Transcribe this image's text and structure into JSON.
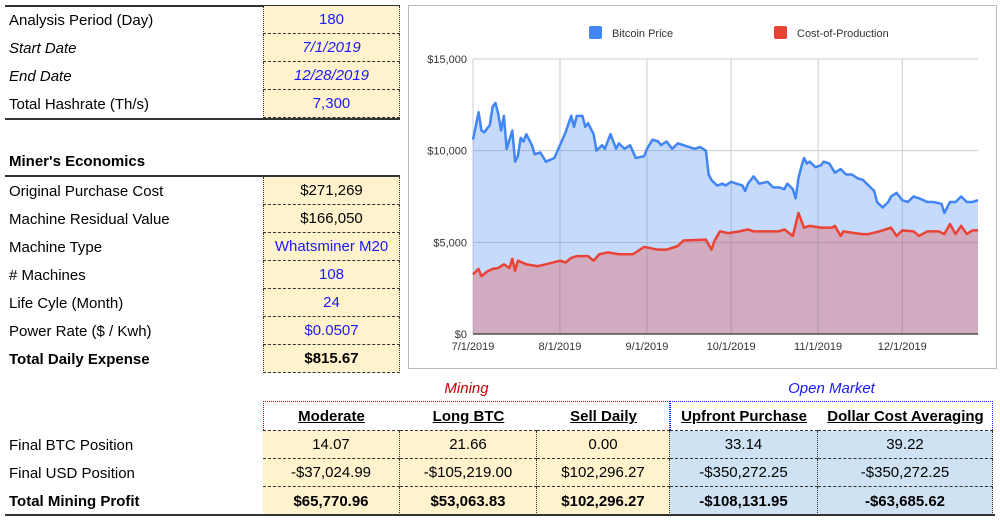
{
  "inputs": {
    "rows": [
      {
        "label": "Analysis Period (Day)",
        "value": "180"
      },
      {
        "label": "Start Date",
        "value": "7/1/2019"
      },
      {
        "label": "End Date",
        "value": "12/28/2019"
      },
      {
        "label": "Total Hashrate (Th/s)",
        "value": "7,300"
      }
    ]
  },
  "economics": {
    "title": "Miner's Economics",
    "rows": [
      {
        "label": "Original Purchase Cost",
        "value": "$271,269"
      },
      {
        "label": "Machine Residual Value",
        "value": "$166,050"
      },
      {
        "label": "Machine Type",
        "value": "Whatsminer M20"
      },
      {
        "label": "# Machines",
        "value": "108"
      },
      {
        "label": "Life Cyle (Month)",
        "value": "24"
      },
      {
        "label": "Power Rate ($ / Kwh)",
        "value": "$0.0507"
      },
      {
        "label": "Total Daily Expense",
        "value": "$815.67"
      }
    ]
  },
  "results": {
    "group_mining": "Mining",
    "group_open_market": "Open Market",
    "columns": [
      "Moderate",
      "Long BTC",
      "Sell Daily",
      "Upfront Purchase",
      "Dollar Cost Averaging"
    ],
    "rows": [
      {
        "label": "Final BTC Position",
        "values": [
          "14.07",
          "21.66",
          "0.00",
          "33.14",
          "39.22"
        ]
      },
      {
        "label": "Final USD Position",
        "values": [
          "-$37,024.99",
          "-$105,219.00",
          "$102,296.27",
          "-$350,272.25",
          "-$350,272.25"
        ]
      },
      {
        "label": "Total Mining Profit",
        "values": [
          "$65,770.96",
          "$53,063.83",
          "$102,296.27",
          "-$108,131.95",
          "-$63,685.62"
        ]
      }
    ]
  },
  "colors": {
    "mining": "#c00000",
    "open_market": "#1a1aff",
    "price": "#4285f4",
    "cost": "#ea4335",
    "cell_yellow": "#fff2cc",
    "cell_blue": "#cfe2f3"
  },
  "chart_data": {
    "type": "area",
    "x_unit": "days since 7/1/2019",
    "xlim": [
      0,
      180
    ],
    "ylim": [
      0,
      15000
    ],
    "yticks": [
      0,
      5000,
      10000,
      15000
    ],
    "ytick_labels": [
      "$0",
      "$5,000",
      "$10,000",
      "$15,000"
    ],
    "xticks": [
      0,
      31,
      62,
      92,
      123,
      153
    ],
    "xtick_labels": [
      "7/1/2019",
      "8/1/2019",
      "9/1/2019",
      "10/1/2019",
      "11/1/2019",
      "12/1/2019"
    ],
    "grid": true,
    "legend_position": "top",
    "series": [
      {
        "name": "Bitcoin Price",
        "color": "#4285f4",
        "points": [
          [
            0,
            10600
          ],
          [
            2,
            12100
          ],
          [
            3,
            11100
          ],
          [
            4,
            11000
          ],
          [
            6,
            11400
          ],
          [
            7,
            12400
          ],
          [
            8,
            12600
          ],
          [
            9,
            12000
          ],
          [
            10,
            11100
          ],
          [
            11,
            11900
          ],
          [
            12,
            10100
          ],
          [
            14,
            11100
          ],
          [
            15,
            9400
          ],
          [
            16,
            9700
          ],
          [
            17,
            10700
          ],
          [
            18,
            10500
          ],
          [
            19,
            10900
          ],
          [
            21,
            10300
          ],
          [
            22,
            9800
          ],
          [
            24,
            9900
          ],
          [
            26,
            9400
          ],
          [
            29,
            9600
          ],
          [
            31,
            10300
          ],
          [
            33,
            11000
          ],
          [
            35,
            11900
          ],
          [
            36,
            11300
          ],
          [
            37,
            11900
          ],
          [
            39,
            11900
          ],
          [
            40,
            11300
          ],
          [
            41,
            11500
          ],
          [
            43,
            10900
          ],
          [
            44,
            10000
          ],
          [
            46,
            10300
          ],
          [
            47,
            10100
          ],
          [
            49,
            10900
          ],
          [
            51,
            10100
          ],
          [
            52,
            10400
          ],
          [
            54,
            10100
          ],
          [
            56,
            10300
          ],
          [
            58,
            9600
          ],
          [
            61,
            9700
          ],
          [
            62,
            10100
          ],
          [
            64,
            10600
          ],
          [
            66,
            10500
          ],
          [
            67,
            10300
          ],
          [
            69,
            10500
          ],
          [
            71,
            10100
          ],
          [
            73,
            10400
          ],
          [
            75,
            10300
          ],
          [
            79,
            10100
          ],
          [
            81,
            10200
          ],
          [
            83,
            10000
          ],
          [
            84,
            8700
          ],
          [
            85,
            8400
          ],
          [
            87,
            8100
          ],
          [
            89,
            8200
          ],
          [
            90,
            8100
          ],
          [
            92,
            8300
          ],
          [
            94,
            8200
          ],
          [
            96,
            8100
          ],
          [
            97,
            7800
          ],
          [
            98,
            8200
          ],
          [
            100,
            8600
          ],
          [
            102,
            8200
          ],
          [
            105,
            8300
          ],
          [
            107,
            8000
          ],
          [
            109,
            8000
          ],
          [
            111,
            7900
          ],
          [
            112,
            8200
          ],
          [
            114,
            7900
          ],
          [
            115,
            7400
          ],
          [
            116,
            8500
          ],
          [
            117,
            9100
          ],
          [
            118,
            9600
          ],
          [
            119,
            9300
          ],
          [
            120,
            9400
          ],
          [
            122,
            9100
          ],
          [
            124,
            9200
          ],
          [
            125,
            9400
          ],
          [
            127,
            9300
          ],
          [
            129,
            8800
          ],
          [
            131,
            9000
          ],
          [
            133,
            8700
          ],
          [
            135,
            8700
          ],
          [
            137,
            8500
          ],
          [
            139,
            8400
          ],
          [
            141,
            8100
          ],
          [
            143,
            7800
          ],
          [
            144,
            7200
          ],
          [
            146,
            6900
          ],
          [
            148,
            7200
          ],
          [
            149,
            7500
          ],
          [
            151,
            7700
          ],
          [
            153,
            7300
          ],
          [
            155,
            7200
          ],
          [
            157,
            7500
          ],
          [
            159,
            7400
          ],
          [
            162,
            7200
          ],
          [
            164,
            7200
          ],
          [
            167,
            7100
          ],
          [
            168,
            6600
          ],
          [
            170,
            7200
          ],
          [
            172,
            7200
          ],
          [
            174,
            7500
          ],
          [
            176,
            7200
          ],
          [
            178,
            7200
          ],
          [
            180,
            7300
          ]
        ]
      },
      {
        "name": "Cost-of-Production",
        "color": "#ea4335",
        "points": [
          [
            0,
            3250
          ],
          [
            2,
            3550
          ],
          [
            3,
            3150
          ],
          [
            5,
            3400
          ],
          [
            7,
            3550
          ],
          [
            9,
            3600
          ],
          [
            11,
            3800
          ],
          [
            13,
            3600
          ],
          [
            14,
            4100
          ],
          [
            15,
            3450
          ],
          [
            16,
            4000
          ],
          [
            19,
            3800
          ],
          [
            23,
            3700
          ],
          [
            26,
            3800
          ],
          [
            31,
            4000
          ],
          [
            33,
            3900
          ],
          [
            35,
            4150
          ],
          [
            37,
            4250
          ],
          [
            41,
            4250
          ],
          [
            43,
            4000
          ],
          [
            45,
            4350
          ],
          [
            48,
            4450
          ],
          [
            52,
            4350
          ],
          [
            57,
            4350
          ],
          [
            61,
            4750
          ],
          [
            66,
            4600
          ],
          [
            69,
            4600
          ],
          [
            73,
            4800
          ],
          [
            75,
            5100
          ],
          [
            83,
            5150
          ],
          [
            85,
            4600
          ],
          [
            86,
            5050
          ],
          [
            88,
            5600
          ],
          [
            91,
            5500
          ],
          [
            95,
            5600
          ],
          [
            98,
            5700
          ],
          [
            100,
            5600
          ],
          [
            104,
            5600
          ],
          [
            109,
            5600
          ],
          [
            111,
            5700
          ],
          [
            114,
            5350
          ],
          [
            116,
            6600
          ],
          [
            118,
            5800
          ],
          [
            120,
            5900
          ],
          [
            124,
            5800
          ],
          [
            128,
            5800
          ],
          [
            129,
            5900
          ],
          [
            131,
            5350
          ],
          [
            132,
            5600
          ],
          [
            136,
            5500
          ],
          [
            139,
            5450
          ],
          [
            141,
            5450
          ],
          [
            145,
            5600
          ],
          [
            149,
            5800
          ],
          [
            151,
            5350
          ],
          [
            153,
            5650
          ],
          [
            157,
            5600
          ],
          [
            159,
            5350
          ],
          [
            162,
            5600
          ],
          [
            166,
            5600
          ],
          [
            168,
            5450
          ],
          [
            170,
            6000
          ],
          [
            172,
            5450
          ],
          [
            174,
            5900
          ],
          [
            176,
            5450
          ],
          [
            178,
            5650
          ],
          [
            180,
            5650
          ]
        ]
      }
    ]
  }
}
